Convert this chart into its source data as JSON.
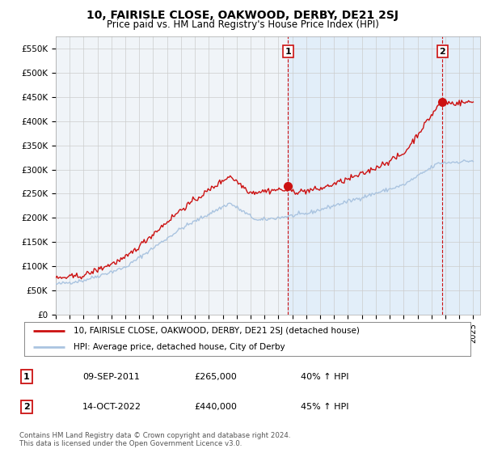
{
  "title": "10, FAIRISLE CLOSE, OAKWOOD, DERBY, DE21 2SJ",
  "subtitle": "Price paid vs. HM Land Registry's House Price Index (HPI)",
  "yticks": [
    0,
    50000,
    100000,
    150000,
    200000,
    250000,
    300000,
    350000,
    400000,
    450000,
    500000,
    550000
  ],
  "ytick_labels": [
    "£0",
    "£50K",
    "£100K",
    "£150K",
    "£200K",
    "£250K",
    "£300K",
    "£350K",
    "£400K",
    "£450K",
    "£500K",
    "£550K"
  ],
  "xlim_start": 1995.0,
  "xlim_end": 2025.5,
  "ylim": [
    0,
    575000
  ],
  "hpi_color": "#aac4e0",
  "sale_color": "#cc1111",
  "dashed_color": "#cc1111",
  "shading_color": "#ddeeff",
  "marker1_x": 2011.69,
  "marker1_y": 265000,
  "marker1_label": "1",
  "marker2_x": 2022.79,
  "marker2_y": 440000,
  "marker2_label": "2",
  "legend_line1": "10, FAIRISLE CLOSE, OAKWOOD, DERBY, DE21 2SJ (detached house)",
  "legend_line2": "HPI: Average price, detached house, City of Derby",
  "annotation1_num": "1",
  "annotation1_date": "09-SEP-2011",
  "annotation1_price": "£265,000",
  "annotation1_pct": "40% ↑ HPI",
  "annotation2_num": "2",
  "annotation2_date": "14-OCT-2022",
  "annotation2_price": "£440,000",
  "annotation2_pct": "45% ↑ HPI",
  "footnote": "Contains HM Land Registry data © Crown copyright and database right 2024.\nThis data is licensed under the Open Government Licence v3.0.",
  "background_color": "#ffffff",
  "grid_color": "#cccccc",
  "chart_bg": "#f0f4f8"
}
